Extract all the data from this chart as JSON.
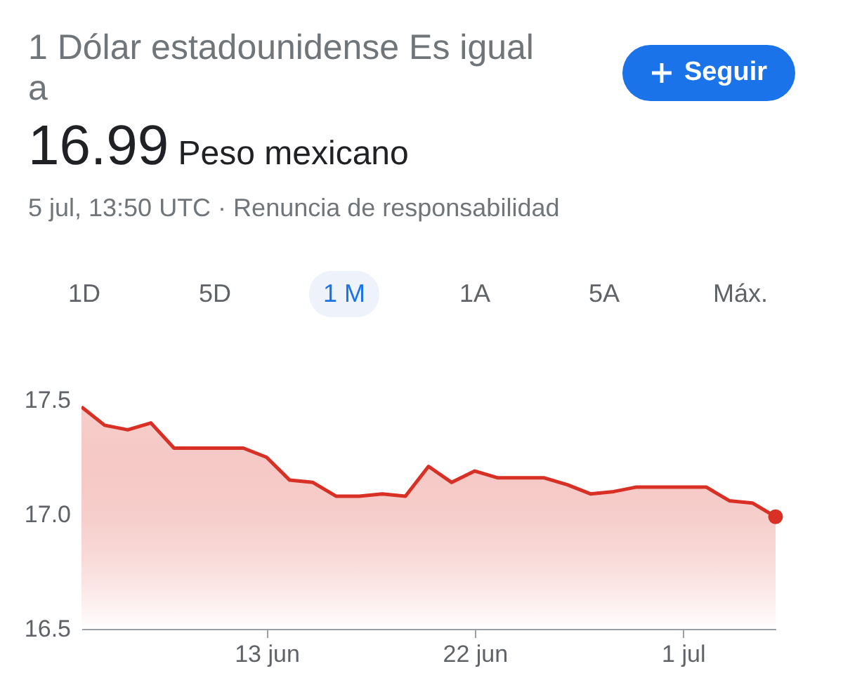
{
  "chart_data": {
    "type": "area",
    "title": "1 Dólar estadounidense Es igual a",
    "subtitle": "16.99 Peso mexicano",
    "annotations": [
      "5 jul, 13:50 UTC · Renuncia de responsabilidad",
      "Seguir",
      "1D",
      "5D",
      "1 M",
      "1A",
      "5A",
      "Máx."
    ],
    "x": [
      "--06-05",
      "--06-06",
      "--06-07",
      "--06-08",
      "--06-09",
      "--06-10",
      "--06-11",
      "--06-12",
      "--06-13",
      "--06-14",
      "--06-15",
      "--06-16",
      "--06-17",
      "--06-18",
      "--06-19",
      "--06-20",
      "--06-21",
      "--06-22",
      "--06-23",
      "--06-24",
      "--06-25",
      "--06-26",
      "--06-27",
      "--06-28",
      "--06-29",
      "--06-30",
      "--07-01",
      "--07-02",
      "--07-03",
      "--07-04",
      "--07-05"
    ],
    "series": [
      {
        "color": "#d93025",
        "values": [
          17.47,
          17.39,
          17.37,
          17.4,
          17.29,
          17.29,
          17.29,
          17.29,
          17.25,
          17.15,
          17.14,
          17.08,
          17.08,
          17.09,
          17.08,
          17.21,
          17.14,
          17.19,
          17.16,
          17.16,
          17.16,
          17.13,
          17.09,
          17.1,
          17.12,
          17.12,
          17.12,
          17.12,
          17.06,
          17.05,
          16.99
        ]
      },
      {
        "type": "scatter",
        "color": "#d93025",
        "x": [
          "--07-05"
        ],
        "values": [
          16.99
        ]
      }
    ],
    "xlim": [
      "--06-05",
      "--07-05"
    ],
    "xticks": [
      {
        "value": "--06-13",
        "label": "13 jun"
      },
      {
        "value": "--06-22",
        "label": "22 jun"
      },
      {
        "value": "--07-01",
        "label": "1 jul"
      }
    ],
    "ylim": [
      16.5,
      17.5
    ],
    "yticks": [
      16.5,
      {
        "value": 17,
        "label": "17.0"
      },
      17.5
    ]
  }
}
